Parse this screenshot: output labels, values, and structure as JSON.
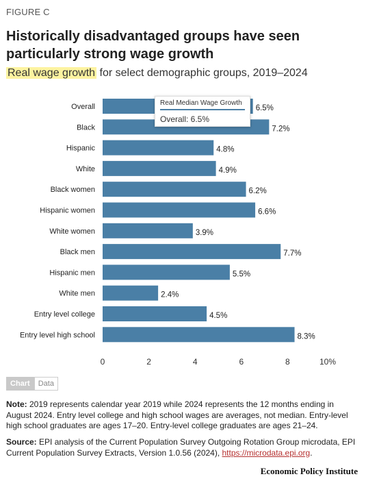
{
  "figure_label": "FIGURE C",
  "title": "Historically disadvantaged groups have seen particularly strong wage growth",
  "subtitle_highlight": "Real wage growth",
  "subtitle_rest": " for select demographic groups, 2019–2024",
  "tooltip": {
    "title": "Real Median Wage Growth",
    "value": "Overall: 6.5%"
  },
  "toggle": {
    "chart": "Chart",
    "data": "Data"
  },
  "note": {
    "label": "Note:",
    "text": " 2019 represents calendar year 2019 while 2024 represents the 12 months ending in August 2024. Entry level college and high school wages are averages, not median. Entry-level high school graduates are ages 17–20. Entry-level college graduates are ages 21–24."
  },
  "source": {
    "label": "Source:",
    "text": " EPI analysis of the Current Population Survey Outgoing Rotation Group microdata, EPI Current Population Survey Extracts, Version 1.0.56 (2024), ",
    "link": "https://microdata.epi.org",
    "end": "."
  },
  "publisher": "Economic Policy Institute",
  "chart_data": {
    "type": "bar",
    "orientation": "horizontal",
    "categories": [
      "Overall",
      "Black",
      "Hispanic",
      "White",
      "Black women",
      "Hispanic women",
      "White women",
      "Black men",
      "Hispanic men",
      "White men",
      "Entry level college",
      "Entry level high school"
    ],
    "values": [
      6.5,
      7.2,
      4.8,
      4.9,
      6.2,
      6.6,
      3.9,
      7.7,
      5.5,
      2.4,
      4.5,
      8.3
    ],
    "value_labels": [
      "6.5%",
      "7.2%",
      "4.8%",
      "4.9%",
      "6.2%",
      "6.6%",
      "3.9%",
      "7.7%",
      "5.5%",
      "2.4%",
      "4.5%",
      "8.3%"
    ],
    "xlim": [
      0,
      10
    ],
    "ticks": [
      0,
      2,
      4,
      6,
      8,
      10
    ],
    "tick_labels": [
      "0",
      "2",
      "4",
      "6",
      "8",
      "10%"
    ],
    "bar_color": "#4a7fa6",
    "grid": false
  }
}
